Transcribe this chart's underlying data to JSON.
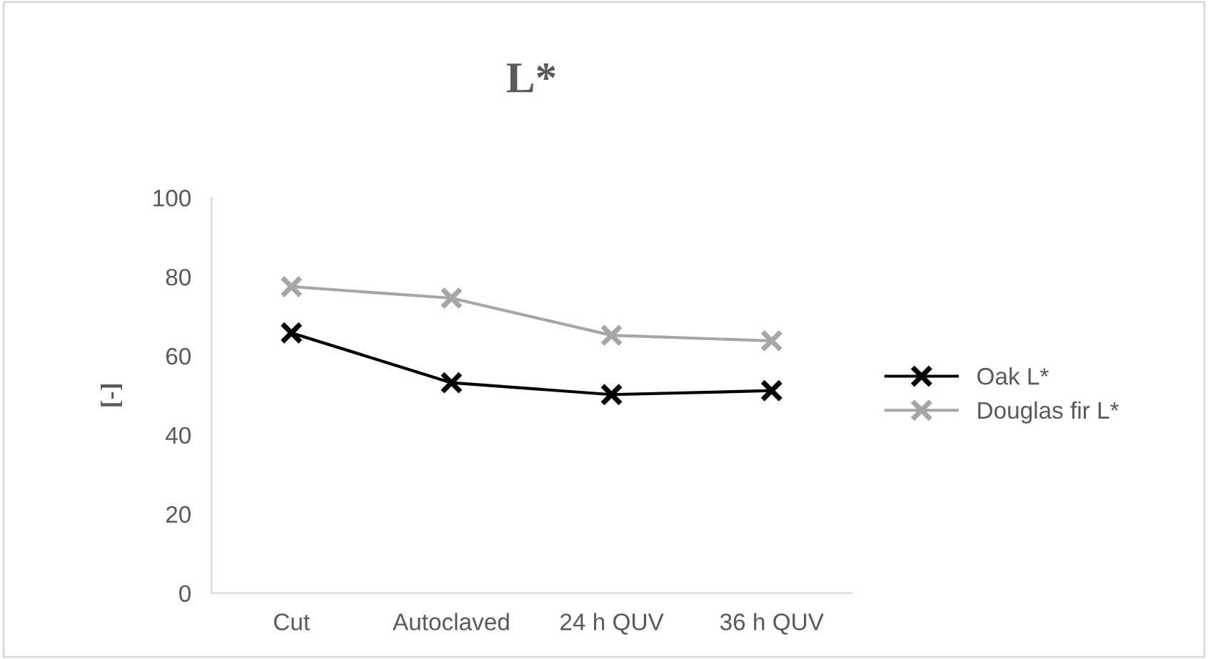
{
  "chart_data": {
    "type": "line",
    "title": "L*",
    "ylabel": "[-]",
    "categories": [
      "Cut",
      "Autoclaved",
      "24 h QUV",
      "36 h QUV"
    ],
    "series": [
      {
        "name": "Oak L*",
        "color": "#000000",
        "values": [
          65.8,
          53.2,
          50.2,
          51.2
        ]
      },
      {
        "name": "Douglas fir L*",
        "color": "#a6a6a6",
        "values": [
          77.5,
          74.6,
          65.2,
          63.8
        ]
      }
    ],
    "ylim": [
      0,
      100
    ],
    "yticks": [
      0,
      20,
      40,
      60,
      80,
      100
    ],
    "grid": false,
    "legend": "right",
    "marker": "cross",
    "line_style": "solid"
  }
}
